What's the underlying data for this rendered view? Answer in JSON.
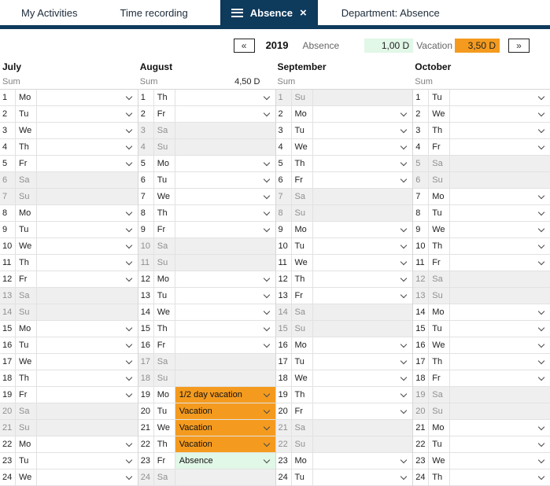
{
  "tabs": {
    "items": [
      {
        "label": "My Activities",
        "active": false
      },
      {
        "label": "Time recording",
        "active": false
      },
      {
        "label": "Absence",
        "active": true
      },
      {
        "label": "Department: Absence",
        "active": false
      }
    ]
  },
  "yearnav": {
    "prev": "«",
    "year": "2019",
    "absence_label": "Absence",
    "absence_value": "1,00 D",
    "vacation_label": "Vacation",
    "vacation_value": "3,50 D",
    "next": "»"
  },
  "colors": {
    "navy": "#0e3a5c",
    "orange": "#f49b1f",
    "green_light": "#e1f7e7",
    "weekend_gray": "#efefef"
  },
  "calendar": {
    "months": [
      {
        "name": "July",
        "sum_label": "Sum",
        "sum_value": "",
        "days": [
          {
            "n": 1,
            "wd": "Mo"
          },
          {
            "n": 2,
            "wd": "Tu"
          },
          {
            "n": 3,
            "wd": "We"
          },
          {
            "n": 4,
            "wd": "Th"
          },
          {
            "n": 5,
            "wd": "Fr"
          },
          {
            "n": 6,
            "wd": "Sa"
          },
          {
            "n": 7,
            "wd": "Su"
          },
          {
            "n": 8,
            "wd": "Mo"
          },
          {
            "n": 9,
            "wd": "Tu"
          },
          {
            "n": 10,
            "wd": "We"
          },
          {
            "n": 11,
            "wd": "Th"
          },
          {
            "n": 12,
            "wd": "Fr"
          },
          {
            "n": 13,
            "wd": "Sa"
          },
          {
            "n": 14,
            "wd": "Su"
          },
          {
            "n": 15,
            "wd": "Mo"
          },
          {
            "n": 16,
            "wd": "Tu"
          },
          {
            "n": 17,
            "wd": "We"
          },
          {
            "n": 18,
            "wd": "Th"
          },
          {
            "n": 19,
            "wd": "Fr"
          },
          {
            "n": 20,
            "wd": "Sa"
          },
          {
            "n": 21,
            "wd": "Su"
          },
          {
            "n": 22,
            "wd": "Mo"
          },
          {
            "n": 23,
            "wd": "Tu"
          },
          {
            "n": 24,
            "wd": "We"
          }
        ]
      },
      {
        "name": "August",
        "sum_label": "Sum",
        "sum_value": "4,50 D",
        "days": [
          {
            "n": 1,
            "wd": "Th"
          },
          {
            "n": 2,
            "wd": "Fr"
          },
          {
            "n": 3,
            "wd": "Sa"
          },
          {
            "n": 4,
            "wd": "Su"
          },
          {
            "n": 5,
            "wd": "Mo"
          },
          {
            "n": 6,
            "wd": "Tu"
          },
          {
            "n": 7,
            "wd": "We"
          },
          {
            "n": 8,
            "wd": "Th"
          },
          {
            "n": 9,
            "wd": "Fr"
          },
          {
            "n": 10,
            "wd": "Sa"
          },
          {
            "n": 11,
            "wd": "Su"
          },
          {
            "n": 12,
            "wd": "Mo"
          },
          {
            "n": 13,
            "wd": "Tu"
          },
          {
            "n": 14,
            "wd": "We"
          },
          {
            "n": 15,
            "wd": "Th"
          },
          {
            "n": 16,
            "wd": "Fr"
          },
          {
            "n": 17,
            "wd": "Sa"
          },
          {
            "n": 18,
            "wd": "Su"
          },
          {
            "n": 19,
            "wd": "Mo",
            "value": "1/2 day vacation",
            "status": "vacation"
          },
          {
            "n": 20,
            "wd": "Tu",
            "value": "Vacation",
            "status": "vacation"
          },
          {
            "n": 21,
            "wd": "We",
            "value": "Vacation",
            "status": "vacation"
          },
          {
            "n": 22,
            "wd": "Th",
            "value": "Vacation",
            "status": "vacation"
          },
          {
            "n": 23,
            "wd": "Fr",
            "value": "Absence",
            "status": "absence"
          },
          {
            "n": 24,
            "wd": "Sa"
          }
        ]
      },
      {
        "name": "September",
        "sum_label": "Sum",
        "sum_value": "",
        "days": [
          {
            "n": 1,
            "wd": "Su"
          },
          {
            "n": 2,
            "wd": "Mo"
          },
          {
            "n": 3,
            "wd": "Tu"
          },
          {
            "n": 4,
            "wd": "We"
          },
          {
            "n": 5,
            "wd": "Th"
          },
          {
            "n": 6,
            "wd": "Fr"
          },
          {
            "n": 7,
            "wd": "Sa"
          },
          {
            "n": 8,
            "wd": "Su"
          },
          {
            "n": 9,
            "wd": "Mo"
          },
          {
            "n": 10,
            "wd": "Tu"
          },
          {
            "n": 11,
            "wd": "We"
          },
          {
            "n": 12,
            "wd": "Th"
          },
          {
            "n": 13,
            "wd": "Fr"
          },
          {
            "n": 14,
            "wd": "Sa"
          },
          {
            "n": 15,
            "wd": "Su"
          },
          {
            "n": 16,
            "wd": "Mo"
          },
          {
            "n": 17,
            "wd": "Tu"
          },
          {
            "n": 18,
            "wd": "We"
          },
          {
            "n": 19,
            "wd": "Th"
          },
          {
            "n": 20,
            "wd": "Fr"
          },
          {
            "n": 21,
            "wd": "Sa"
          },
          {
            "n": 22,
            "wd": "Su"
          },
          {
            "n": 23,
            "wd": "Mo"
          },
          {
            "n": 24,
            "wd": "Tu"
          }
        ]
      },
      {
        "name": "October",
        "sum_label": "Sum",
        "sum_value": "",
        "days": [
          {
            "n": 1,
            "wd": "Tu"
          },
          {
            "n": 2,
            "wd": "We"
          },
          {
            "n": 3,
            "wd": "Th"
          },
          {
            "n": 4,
            "wd": "Fr"
          },
          {
            "n": 5,
            "wd": "Sa"
          },
          {
            "n": 6,
            "wd": "Su"
          },
          {
            "n": 7,
            "wd": "Mo"
          },
          {
            "n": 8,
            "wd": "Tu"
          },
          {
            "n": 9,
            "wd": "We"
          },
          {
            "n": 10,
            "wd": "Th"
          },
          {
            "n": 11,
            "wd": "Fr"
          },
          {
            "n": 12,
            "wd": "Sa"
          },
          {
            "n": 13,
            "wd": "Su"
          },
          {
            "n": 14,
            "wd": "Mo"
          },
          {
            "n": 15,
            "wd": "Tu"
          },
          {
            "n": 16,
            "wd": "We"
          },
          {
            "n": 17,
            "wd": "Th"
          },
          {
            "n": 18,
            "wd": "Fr"
          },
          {
            "n": 19,
            "wd": "Sa"
          },
          {
            "n": 20,
            "wd": "Su"
          },
          {
            "n": 21,
            "wd": "Mo"
          },
          {
            "n": 22,
            "wd": "Tu"
          },
          {
            "n": 23,
            "wd": "We"
          },
          {
            "n": 24,
            "wd": "Th"
          }
        ]
      }
    ]
  }
}
